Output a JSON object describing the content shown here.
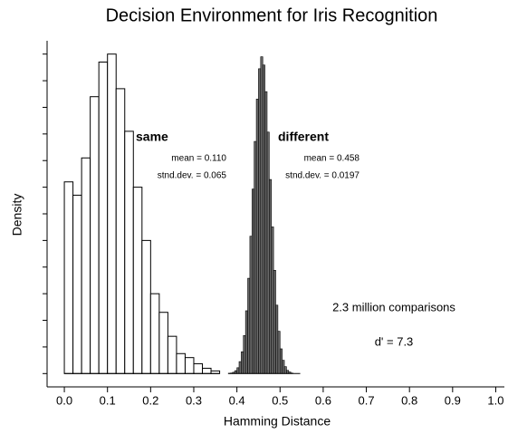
{
  "chart_data": {
    "type": "histogram",
    "title": "Decision Environment for Iris Recognition",
    "xlabel": "Hamming Distance",
    "ylabel": "Density",
    "xlim": [
      -0.04,
      1.02
    ],
    "ylim": [
      -0.5,
      12.5
    ],
    "xticks": [
      {
        "value": 0,
        "label": "0.0"
      },
      0.1,
      0.2,
      0.3,
      0.4,
      0.5,
      0.6,
      0.7,
      0.8,
      0.9,
      {
        "value": 1,
        "label": "1.0"
      }
    ],
    "yticks": [
      0,
      1,
      2,
      3,
      4,
      5,
      6,
      7,
      8,
      9,
      10,
      11,
      12
    ],
    "series": [
      {
        "name": "same",
        "color": "#ffffff",
        "bins": [
          0,
          0.02,
          0.04,
          0.06,
          0.08,
          0.1,
          0.12,
          0.14,
          0.16,
          0.18,
          0.2,
          0.22,
          0.24,
          0.26,
          0.28,
          0.3,
          0.32,
          0.34,
          0.36
        ],
        "values": [
          7.2,
          6.7,
          8.1,
          10.4,
          11.7,
          12.0,
          10.7,
          9.1,
          7.0,
          5.0,
          3.0,
          2.3,
          1.4,
          0.75,
          0.6,
          0.37,
          0.2,
          0.1
        ]
      },
      {
        "name": "different",
        "color": "#6a6a6a",
        "bins": [
          0.38,
          0.385,
          0.39,
          0.395,
          0.4,
          0.405,
          0.41,
          0.415,
          0.42,
          0.425,
          0.43,
          0.435,
          0.44,
          0.445,
          0.45,
          0.455,
          0.46,
          0.465,
          0.47,
          0.475,
          0.48,
          0.485,
          0.49,
          0.495,
          0.5,
          0.505,
          0.51,
          0.515,
          0.52,
          0.525,
          0.53
        ],
        "values": [
          0.01,
          0.02,
          0.05,
          0.11,
          0.22,
          0.45,
          0.82,
          1.43,
          2.36,
          3.58,
          5.16,
          6.93,
          8.72,
          10.31,
          11.45,
          11.9,
          11.59,
          10.59,
          9.07,
          7.29,
          5.51,
          3.88,
          2.57,
          1.59,
          0.93,
          0.5,
          0.26,
          0.12,
          0.06,
          0.02
        ]
      }
    ],
    "annotations": [
      "mean = 0.110",
      "stnd.dev. = 0.065",
      "mean = 0.458",
      "stnd.dev. = 0.0197",
      "2.3 million comparisons",
      "d' = 7.3"
    ]
  }
}
